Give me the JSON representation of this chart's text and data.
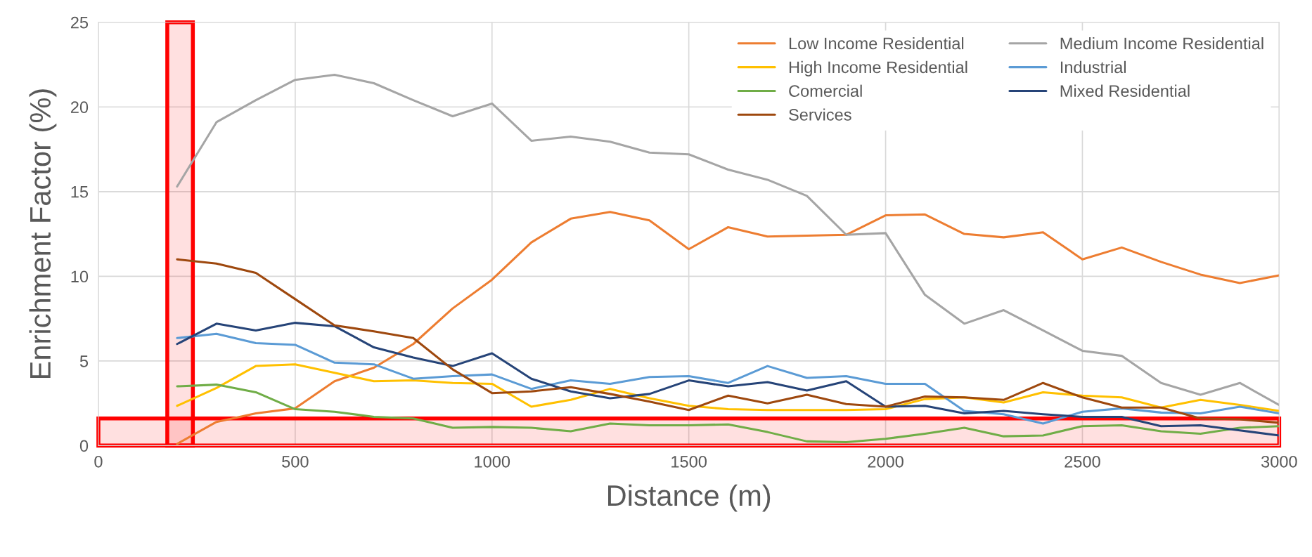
{
  "chart_data": {
    "type": "line",
    "xlabel": "Distance (m)",
    "ylabel": "Enrichment Factor (%)",
    "x": [
      200,
      300,
      400,
      500,
      600,
      700,
      800,
      900,
      1000,
      1100,
      1200,
      1300,
      1400,
      1500,
      1600,
      1700,
      1800,
      1900,
      2000,
      2100,
      2200,
      2300,
      2400,
      2500,
      2600,
      2700,
      2800,
      2900,
      3000
    ],
    "series": [
      {
        "name": "Low Income Residential",
        "color": "#ed7d31",
        "values": [
          0.1,
          1.4,
          1.9,
          2.2,
          3.8,
          4.6,
          6.0,
          8.1,
          9.8,
          12.0,
          13.4,
          13.8,
          13.3,
          11.6,
          12.9,
          12.35,
          12.4,
          12.45,
          13.6,
          13.65,
          12.5,
          12.3,
          12.6,
          11.0,
          11.7,
          10.85,
          10.1,
          9.6,
          10.05
        ]
      },
      {
        "name": "Medium Income Residential",
        "color": "#a5a5a5",
        "values": [
          15.3,
          19.1,
          20.4,
          21.6,
          21.9,
          21.4,
          20.4,
          19.45,
          20.2,
          18.0,
          18.25,
          17.95,
          17.3,
          17.2,
          16.3,
          15.7,
          14.75,
          12.45,
          12.55,
          8.9,
          7.2,
          8.0,
          6.8,
          5.6,
          5.3,
          3.7,
          3.0,
          3.7,
          2.4
        ]
      },
      {
        "name": "High Income Residential",
        "color": "#ffc000",
        "values": [
          2.35,
          3.4,
          4.7,
          4.8,
          4.3,
          3.8,
          3.85,
          3.7,
          3.65,
          2.3,
          2.7,
          3.35,
          2.8,
          2.35,
          2.15,
          2.1,
          2.1,
          2.1,
          2.15,
          2.75,
          2.85,
          2.55,
          3.15,
          2.95,
          2.85,
          2.25,
          2.7,
          2.4,
          2.05
        ]
      },
      {
        "name": "Industrial",
        "color": "#5b9bd5",
        "values": [
          6.35,
          6.6,
          6.05,
          5.95,
          4.9,
          4.8,
          3.95,
          4.1,
          4.2,
          3.35,
          3.85,
          3.65,
          4.05,
          4.1,
          3.7,
          4.7,
          4.0,
          4.1,
          3.65,
          3.65,
          2.05,
          1.85,
          1.3,
          2.0,
          2.2,
          1.95,
          1.9,
          2.3,
          1.9
        ]
      },
      {
        "name": "Comercial",
        "color": "#70ad47",
        "values": [
          3.5,
          3.6,
          3.15,
          2.15,
          2.0,
          1.7,
          1.6,
          1.05,
          1.1,
          1.05,
          0.85,
          1.3,
          1.2,
          1.2,
          1.25,
          0.8,
          0.25,
          0.2,
          0.4,
          0.7,
          1.05,
          0.55,
          0.6,
          1.15,
          1.2,
          0.85,
          0.7,
          1.05,
          1.15
        ]
      },
      {
        "name": "Mixed Residential",
        "color": "#264478",
        "values": [
          6.0,
          7.2,
          6.8,
          7.25,
          7.05,
          5.8,
          5.2,
          4.7,
          5.45,
          3.95,
          3.2,
          2.8,
          3.05,
          3.85,
          3.5,
          3.75,
          3.25,
          3.8,
          2.3,
          2.35,
          1.9,
          2.05,
          1.85,
          1.7,
          1.7,
          1.15,
          1.2,
          0.9,
          0.6
        ]
      },
      {
        "name": "Services",
        "color": "#9e480e",
        "values": [
          11.0,
          10.75,
          10.2,
          8.65,
          7.1,
          6.75,
          6.35,
          4.5,
          3.1,
          3.2,
          3.45,
          3.05,
          2.6,
          2.1,
          2.95,
          2.5,
          3.0,
          2.45,
          2.3,
          2.9,
          2.85,
          2.7,
          3.7,
          2.85,
          2.25,
          2.25,
          1.6,
          1.55,
          1.35
        ]
      }
    ],
    "xlim": [
      0,
      3000
    ],
    "xticks": [
      0,
      500,
      1000,
      1500,
      2000,
      2500,
      3000
    ],
    "ylim": [
      0,
      25
    ],
    "yticks": [
      0,
      5,
      10,
      15,
      20,
      25
    ],
    "grid": true,
    "legend": "top right",
    "marker": "none",
    "line_style": "solid",
    "bands": [
      {
        "axis": "x",
        "from": 175,
        "to": 240,
        "color": "#ff0000"
      },
      {
        "axis": "y",
        "from": 0,
        "to": 1.6,
        "color": "#ff0000"
      }
    ]
  }
}
